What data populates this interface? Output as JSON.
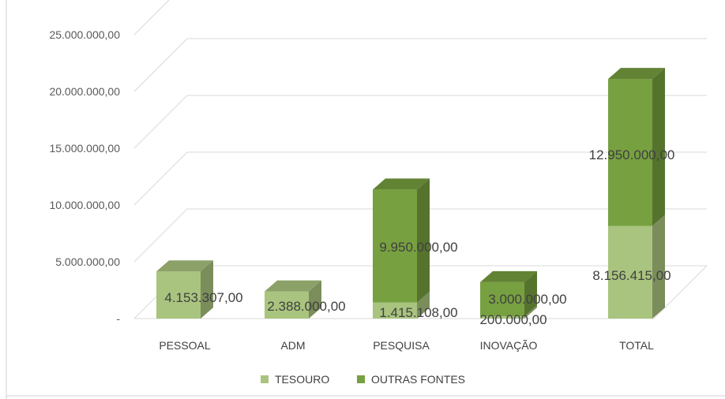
{
  "chart_data": {
    "type": "bar",
    "stacked": true,
    "style": "3d-column",
    "categories": [
      "PESSOAL",
      "ADM",
      "PESQUISA",
      "INOVAÇÃO",
      "TOTAL"
    ],
    "series": [
      {
        "name": "TESOURO",
        "color": "#a9c47f",
        "values": [
          4153307,
          2388000,
          1415108,
          200000,
          8156415
        ],
        "labels": [
          "4.153.307,00",
          "2.388.000,00",
          "1.415.108,00",
          "200.000,00",
          "8.156.415,00"
        ]
      },
      {
        "name": "OUTRAS FONTES",
        "color": "#77a040",
        "values": [
          0,
          0,
          9950000,
          3000000,
          12950000
        ],
        "labels": [
          "",
          "",
          "9.950.000,00",
          "3.000.000,00",
          "12.950.000,00"
        ]
      }
    ],
    "y_ticks": [
      {
        "value": 0,
        "label": "-"
      },
      {
        "value": 5000000,
        "label": "5.000.000,00"
      },
      {
        "value": 10000000,
        "label": "10.000.000,00"
      },
      {
        "value": 15000000,
        "label": "15.000.000,00"
      },
      {
        "value": 20000000,
        "label": "20.000.000,00"
      },
      {
        "value": 25000000,
        "label": "25.000.000,00"
      }
    ],
    "ylim": [
      0,
      25000000
    ],
    "grid": true,
    "legend_position": "bottom",
    "title": "",
    "xlabel": "",
    "ylabel": ""
  }
}
